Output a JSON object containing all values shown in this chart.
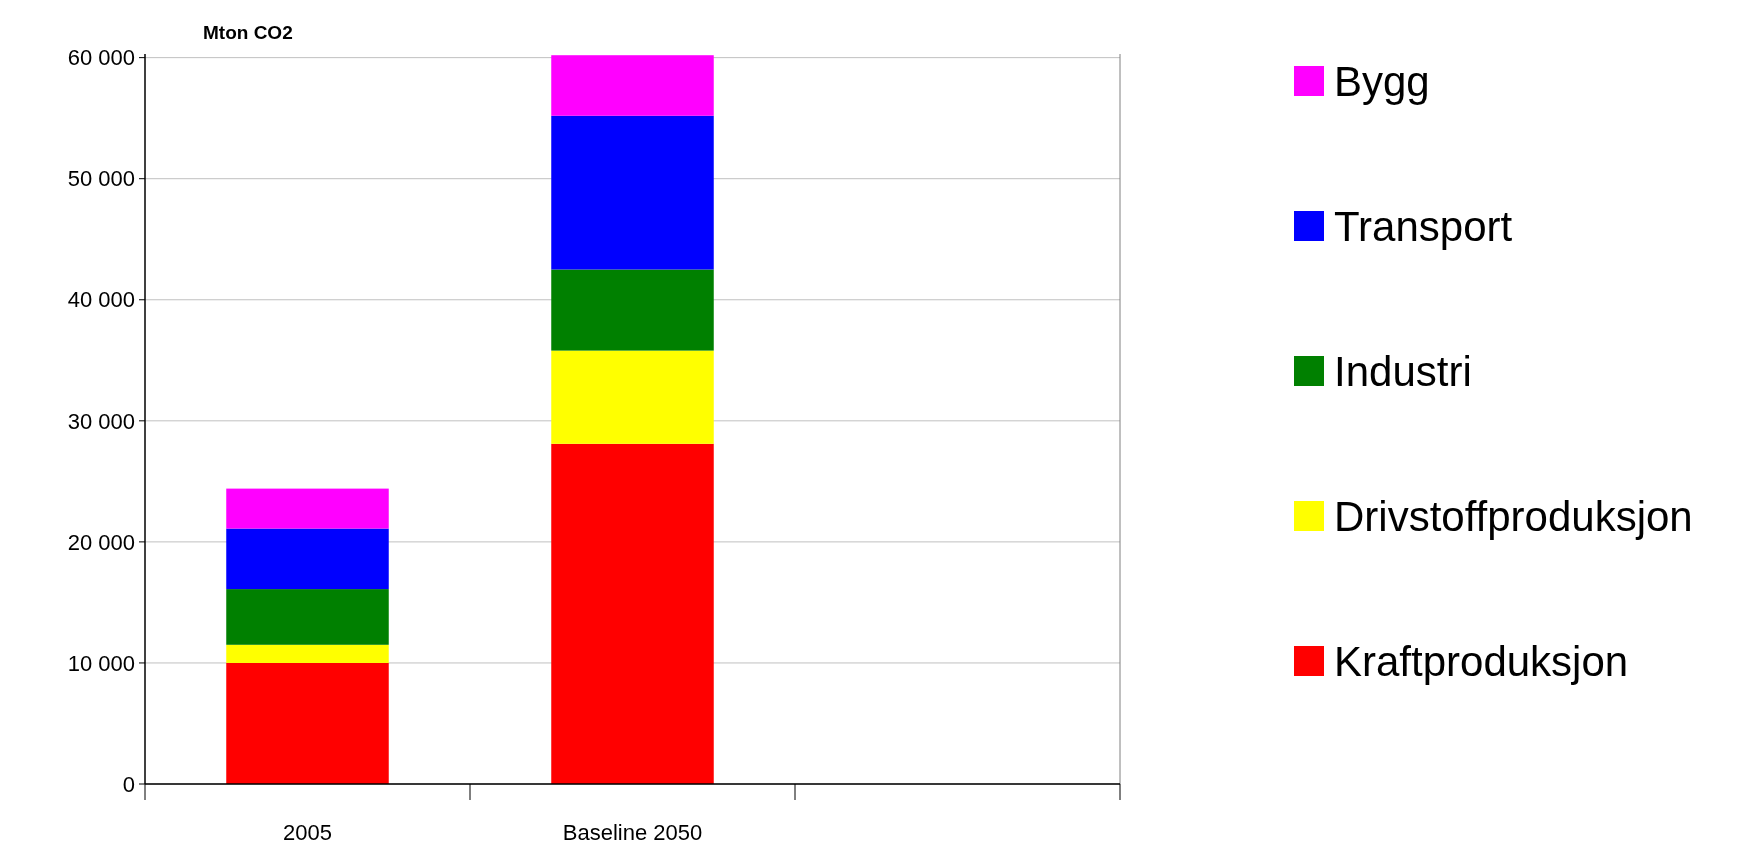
{
  "chart_data": {
    "type": "bar",
    "stacked": true,
    "ylabel": "Mton CO2",
    "categories": [
      "2005",
      "Baseline 2050",
      null
    ],
    "series": [
      {
        "name": "Kraftproduksjon",
        "color": "#ff0000",
        "values": [
          10000,
          28100,
          null
        ]
      },
      {
        "name": "Drivstoffproduksjon",
        "color": "#ffff00",
        "values": [
          1500,
          7700,
          null
        ]
      },
      {
        "name": "Industri",
        "color": "#008000",
        "values": [
          4600,
          6700,
          null
        ]
      },
      {
        "name": "Transport",
        "color": "#0000ff",
        "values": [
          5000,
          12700,
          null
        ]
      },
      {
        "name": "Bygg",
        "color": "#ff00ff",
        "values": [
          3300,
          5000,
          null
        ]
      }
    ],
    "ylim": [
      0,
      60300
    ],
    "yticks": [
      {
        "value": 0,
        "label": "0"
      },
      {
        "value": 10000,
        "label": "10 000"
      },
      {
        "value": 20000,
        "label": "20 000"
      },
      {
        "value": 30000,
        "label": "30 000"
      },
      {
        "value": 40000,
        "label": "40 000"
      },
      {
        "value": 50000,
        "label": "50 000"
      },
      {
        "value": 60000,
        "label": "60 000"
      }
    ],
    "grid": "y",
    "legend": "right"
  }
}
